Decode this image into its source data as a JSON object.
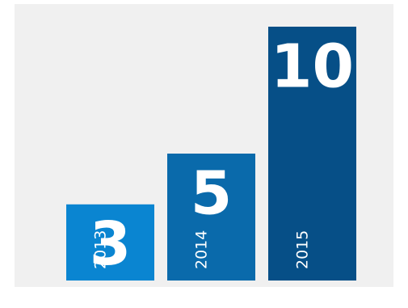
{
  "chart_data": {
    "type": "bar",
    "title": "",
    "xlabel": "",
    "ylabel": "",
    "categories": [
      "2013",
      "2014",
      "2015"
    ],
    "values": [
      3,
      5,
      10
    ],
    "ylim": [
      0,
      10
    ],
    "grid": false,
    "legend": "none",
    "colors": [
      "#0a85d1",
      "#0a6aab",
      "#064f87"
    ],
    "label_color": "#ffffff",
    "background": "#f0f0f0"
  }
}
